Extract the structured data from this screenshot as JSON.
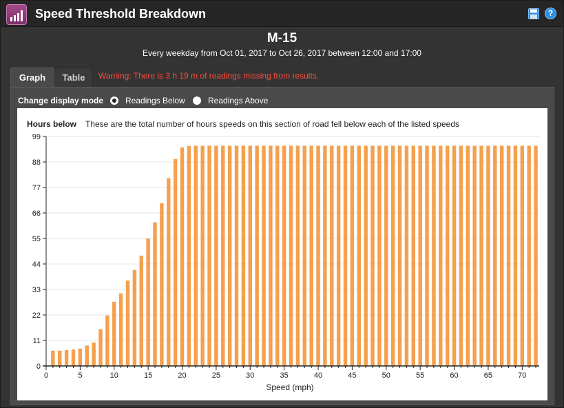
{
  "header": {
    "title": "Speed Threshold Breakdown",
    "app_icon": "signal-bars-icon",
    "save_icon": "floppy-disk-icon",
    "help_icon": "question-icon",
    "help_glyph": "?"
  },
  "report": {
    "road_name": "M-15",
    "subtitle": "Every weekday from Oct 01, 2017 to Oct 26, 2017 between 12:00 and 17:00"
  },
  "tabs": [
    {
      "label": "Graph",
      "active": true
    },
    {
      "label": "Table",
      "active": false
    }
  ],
  "warning": "Warning: There is 3 h 19 m of readings missing from results.",
  "display_mode": {
    "label": "Change display mode",
    "options": [
      {
        "label": "Readings Below",
        "checked": true
      },
      {
        "label": "Readings Above",
        "checked": false
      }
    ]
  },
  "chart_data": {
    "type": "bar",
    "title": "Hours below",
    "subtitle": "These are the total number of hours speeds on this section of road fell below each of the listed speeds",
    "xlabel": "Speed (mph)",
    "ylabel": "",
    "ylim": [
      0,
      99
    ],
    "yticks": [
      0,
      11,
      22,
      33,
      44,
      55,
      66,
      77,
      88,
      99
    ],
    "xticks": [
      0,
      5,
      10,
      15,
      20,
      25,
      30,
      35,
      40,
      45,
      50,
      55,
      60,
      65,
      70
    ],
    "xlim": [
      0,
      72.5
    ],
    "bar_color": "#f5a04e",
    "grid": "horizontal",
    "legend": "none",
    "x": [
      1,
      2,
      3,
      4,
      5,
      6,
      7,
      8,
      9,
      10,
      11,
      12,
      13,
      14,
      15,
      16,
      17,
      18,
      19,
      20,
      21,
      22,
      23,
      24,
      25,
      26,
      27,
      28,
      29,
      30,
      31,
      32,
      33,
      34,
      35,
      36,
      37,
      38,
      39,
      40,
      41,
      42,
      43,
      44,
      45,
      46,
      47,
      48,
      49,
      50,
      51,
      52,
      53,
      54,
      55,
      56,
      57,
      58,
      59,
      60,
      61,
      62,
      63,
      64,
      65,
      66,
      67,
      68,
      69,
      70,
      71,
      72
    ],
    "values": [
      6.6,
      6.6,
      6.8,
      7.1,
      7.5,
      8.8,
      10.1,
      15.8,
      21.8,
      27.7,
      31.3,
      36.8,
      41.4,
      47.6,
      55.0,
      62.0,
      70.2,
      81.0,
      89.3,
      94.3,
      94.9,
      95.0,
      95.0,
      95.0,
      95.0,
      95.0,
      95.0,
      95.0,
      95.0,
      95.0,
      95.0,
      95.0,
      95.0,
      95.0,
      95.0,
      95.0,
      95.0,
      95.0,
      95.0,
      95.0,
      95.0,
      95.0,
      95.0,
      95.0,
      95.0,
      95.0,
      95.0,
      95.0,
      95.0,
      95.0,
      95.0,
      95.0,
      95.0,
      95.0,
      95.0,
      95.0,
      95.0,
      95.0,
      95.0,
      95.0,
      95.0,
      95.0,
      95.0,
      95.0,
      95.0,
      95.0,
      95.0,
      95.0,
      95.0,
      95.0,
      95.0,
      95.0
    ]
  }
}
